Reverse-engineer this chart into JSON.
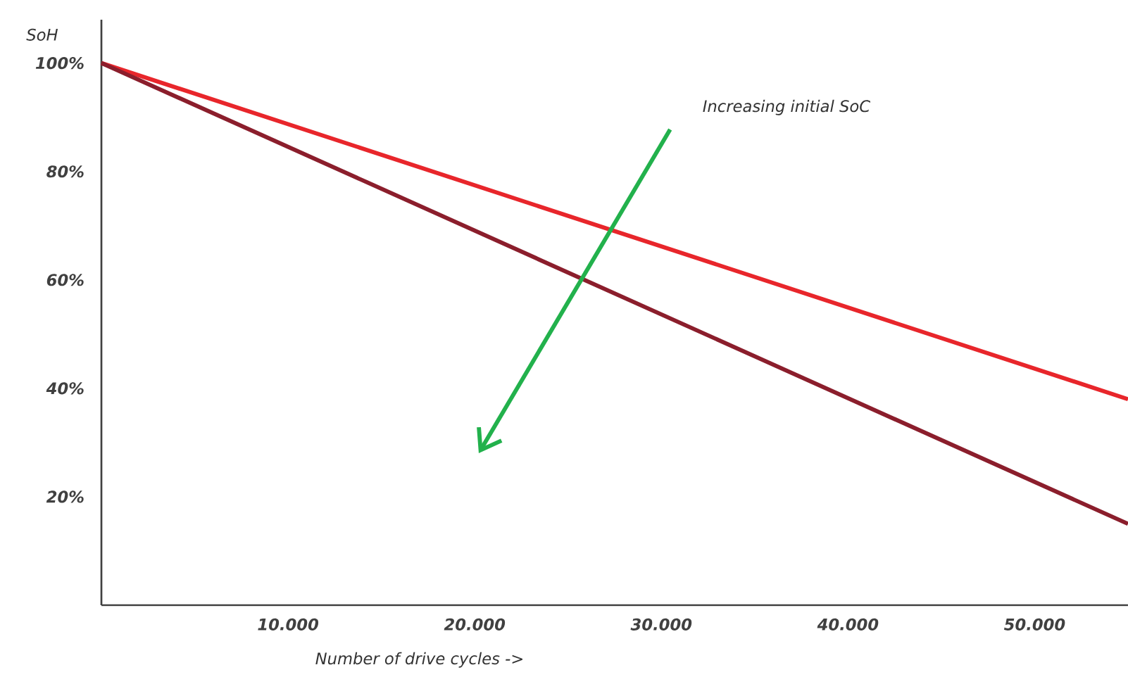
{
  "chart_data": {
    "type": "line",
    "xlabel": "Number of drive cycles ->",
    "ylabel": "SoH",
    "annotations": [
      "Increasing initial SoC"
    ],
    "x": [
      0,
      55000
    ],
    "xlim": [
      0,
      55000
    ],
    "ylim": [
      0,
      108
    ],
    "xticks": [
      {
        "value": 10000,
        "label": "10.000"
      },
      {
        "value": 20000,
        "label": "20.000"
      },
      {
        "value": 30000,
        "label": "30.000"
      },
      {
        "value": 40000,
        "label": "40.000"
      },
      {
        "value": 50000,
        "label": "50.000"
      }
    ],
    "yticks": [
      {
        "value": 20,
        "label": "20%"
      },
      {
        "value": 40,
        "label": "40%"
      },
      {
        "value": 60,
        "label": "60%"
      },
      {
        "value": 80,
        "label": "80%"
      },
      {
        "value": 100,
        "label": "100%"
      }
    ],
    "series": [
      {
        "color": "#e8262b",
        "values": [
          100,
          38
        ]
      },
      {
        "color": "#8b1e2c",
        "values": [
          100,
          15
        ]
      }
    ],
    "grid": false,
    "marker": "none",
    "line_style": "solid"
  }
}
